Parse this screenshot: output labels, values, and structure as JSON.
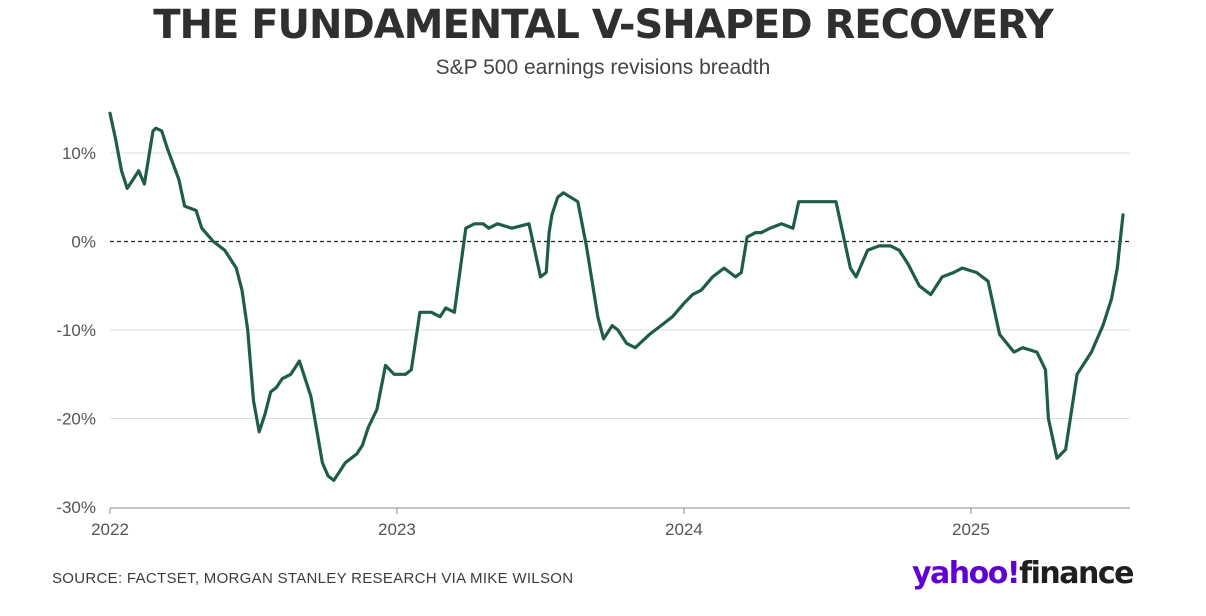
{
  "header": {
    "title": "THE FUNDAMENTAL V-SHAPED RECOVERY",
    "subtitle": "S&P 500 earnings revisions breadth"
  },
  "footer": {
    "source": "SOURCE: FACTSET, MORGAN STANLEY RESEARCH VIA MIKE WILSON",
    "brand_part1": "yahoo!",
    "brand_part2": "finance"
  },
  "colors": {
    "line": "#1f5c4b",
    "grid": "#dddddd",
    "brand": "#5f01d1"
  },
  "chart_data": {
    "type": "line",
    "title": "THE FUNDAMENTAL V-SHAPED RECOVERY",
    "subtitle": "S&P 500 earnings revisions breadth",
    "xlabel": "",
    "ylabel": "",
    "x_tick_labels": [
      "2022",
      "2023",
      "2024",
      "2025"
    ],
    "x_tick_values": [
      2022,
      2023,
      2024,
      2025
    ],
    "y_tick_labels": [
      "10%",
      "0%",
      "-10%",
      "-20%",
      "-30%"
    ],
    "y_tick_values": [
      10,
      0,
      -10,
      -20,
      -30
    ],
    "xlim": [
      2022,
      2025.55
    ],
    "ylim": [
      -30,
      15
    ],
    "grid": true,
    "reference_line": {
      "y": 0,
      "style": "dashed"
    },
    "series": [
      {
        "name": "S&P 500 earnings revisions breadth (%)",
        "x": [
          2022.0,
          2022.02,
          2022.04,
          2022.06,
          2022.08,
          2022.1,
          2022.12,
          2022.15,
          2022.16,
          2022.18,
          2022.2,
          2022.24,
          2022.26,
          2022.3,
          2022.32,
          2022.36,
          2022.4,
          2022.44,
          2022.46,
          2022.48,
          2022.5,
          2022.52,
          2022.54,
          2022.56,
          2022.58,
          2022.6,
          2022.63,
          2022.66,
          2022.7,
          2022.74,
          2022.76,
          2022.78,
          2022.8,
          2022.82,
          2022.84,
          2022.86,
          2022.88,
          2022.9,
          2022.93,
          2022.96,
          2022.99,
          2023.03,
          2023.05,
          2023.08,
          2023.12,
          2023.15,
          2023.17,
          2023.2,
          2023.24,
          2023.27,
          2023.3,
          2023.32,
          2023.35,
          2023.4,
          2023.46,
          2023.5,
          2023.52,
          2023.53,
          2023.54,
          2023.56,
          2023.58,
          2023.63,
          2023.66,
          2023.7,
          2023.72,
          2023.75,
          2023.77,
          2023.8,
          2023.83,
          2023.88,
          2023.92,
          2023.96,
          2024.0,
          2024.03,
          2024.06,
          2024.1,
          2024.14,
          2024.18,
          2024.2,
          2024.22,
          2024.25,
          2024.27,
          2024.3,
          2024.34,
          2024.38,
          2024.4,
          2024.45,
          2024.5,
          2024.53,
          2024.56,
          2024.58,
          2024.6,
          2024.64,
          2024.68,
          2024.72,
          2024.75,
          2024.78,
          2024.82,
          2024.86,
          2024.9,
          2024.94,
          2024.97,
          2025.02,
          2025.06,
          2025.1,
          2025.15,
          2025.18,
          2025.23,
          2025.26,
          2025.27,
          2025.3,
          2025.33,
          2025.37,
          2025.42,
          2025.46,
          2025.49,
          2025.51,
          2025.52,
          2025.53
        ],
        "values": [
          14.5,
          11.5,
          8.0,
          6.0,
          7.0,
          8.0,
          6.5,
          12.5,
          12.8,
          12.5,
          10.5,
          7.0,
          4.0,
          3.5,
          1.5,
          0.0,
          -1.0,
          -3.0,
          -5.5,
          -10.0,
          -18.0,
          -21.5,
          -19.5,
          -17.0,
          -16.5,
          -15.5,
          -15.0,
          -13.5,
          -17.5,
          -25.0,
          -26.5,
          -27.0,
          -26.0,
          -25.0,
          -24.5,
          -24.0,
          -23.0,
          -21.0,
          -19.0,
          -14.0,
          -15.0,
          -15.0,
          -14.5,
          -8.0,
          -8.0,
          -8.5,
          -7.5,
          -8.0,
          1.5,
          2.0,
          2.0,
          1.5,
          2.0,
          1.5,
          2.0,
          -4.0,
          -3.5,
          1.0,
          3.0,
          5.0,
          5.5,
          4.5,
          -0.5,
          -8.5,
          -11.0,
          -9.5,
          -10.0,
          -11.5,
          -12.0,
          -10.5,
          -9.5,
          -8.5,
          -7.0,
          -6.0,
          -5.5,
          -4.0,
          -3.0,
          -4.0,
          -3.5,
          0.5,
          1.0,
          1.0,
          1.5,
          2.0,
          1.5,
          4.5,
          4.5,
          4.5,
          4.5,
          0.0,
          -3.0,
          -4.0,
          -1.0,
          -0.5,
          -0.5,
          -1.0,
          -2.5,
          -5.0,
          -6.0,
          -4.0,
          -3.5,
          -3.0,
          -3.5,
          -4.5,
          -10.5,
          -12.5,
          -12.0,
          -12.5,
          -14.5,
          -20.0,
          -24.5,
          -23.5,
          -15.0,
          -12.5,
          -9.5,
          -6.5,
          -3.0,
          0.0,
          3.0
        ]
      }
    ]
  }
}
